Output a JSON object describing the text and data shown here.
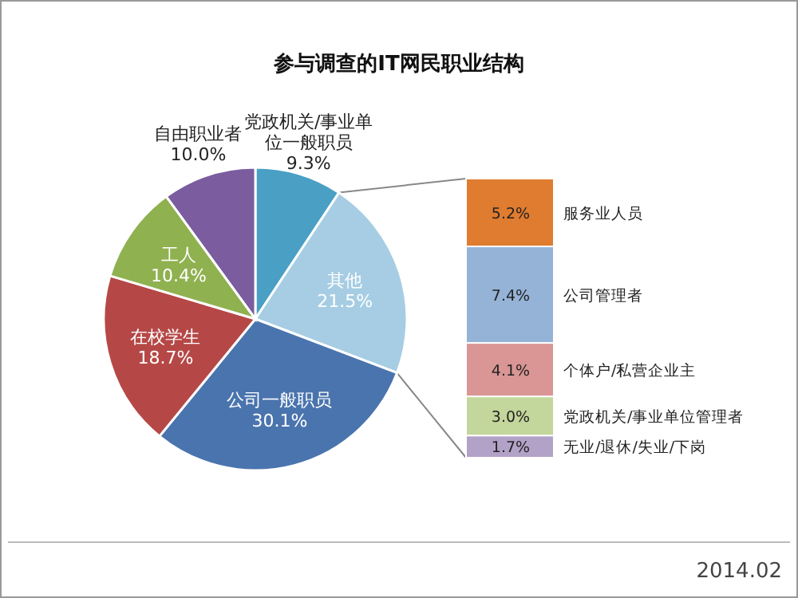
{
  "chart_data": [
    {
      "type": "pie",
      "title": "参与调查的IT网民职业结构",
      "categories": [
        "党政机关/事业单位一般职员",
        "其他",
        "公司一般职员",
        "在校学生",
        "工人",
        "自由职业者"
      ],
      "values": [
        9.3,
        21.5,
        30.1,
        18.7,
        10.4,
        10.0
      ],
      "colors": [
        "#4a9fc4",
        "#a6cde3",
        "#4a74ae",
        "#b54846",
        "#8fb150",
        "#7b5c9f"
      ],
      "value_labels": [
        "9.3%",
        "21.5%",
        "30.1%",
        "18.7%",
        "10.4%",
        "10.0%"
      ],
      "annotations": [
        "2014.02"
      ]
    },
    {
      "type": "bar",
      "stacked": true,
      "categories": [
        null
      ],
      "series": [
        {
          "name": "无业/退休/失业/下岗",
          "color": "#b3a2c7",
          "values": [
            1.7
          ],
          "value_labels": [
            "1.7%"
          ]
        },
        {
          "name": "党政机关/事业单位管理者",
          "color": "#c3d69b",
          "values": [
            3.0
          ],
          "value_labels": [
            "3.0%"
          ]
        },
        {
          "name": "个体户/私营企业主",
          "color": "#d99694",
          "values": [
            4.1
          ],
          "value_labels": [
            "4.1%"
          ]
        },
        {
          "name": "公司管理者",
          "color": "#95b3d7",
          "values": [
            7.4
          ],
          "value_labels": [
            "7.4%"
          ]
        },
        {
          "name": "服务业人员",
          "color": "#e07c30",
          "values": [
            5.2
          ],
          "value_labels": [
            "5.2%"
          ]
        }
      ]
    }
  ]
}
